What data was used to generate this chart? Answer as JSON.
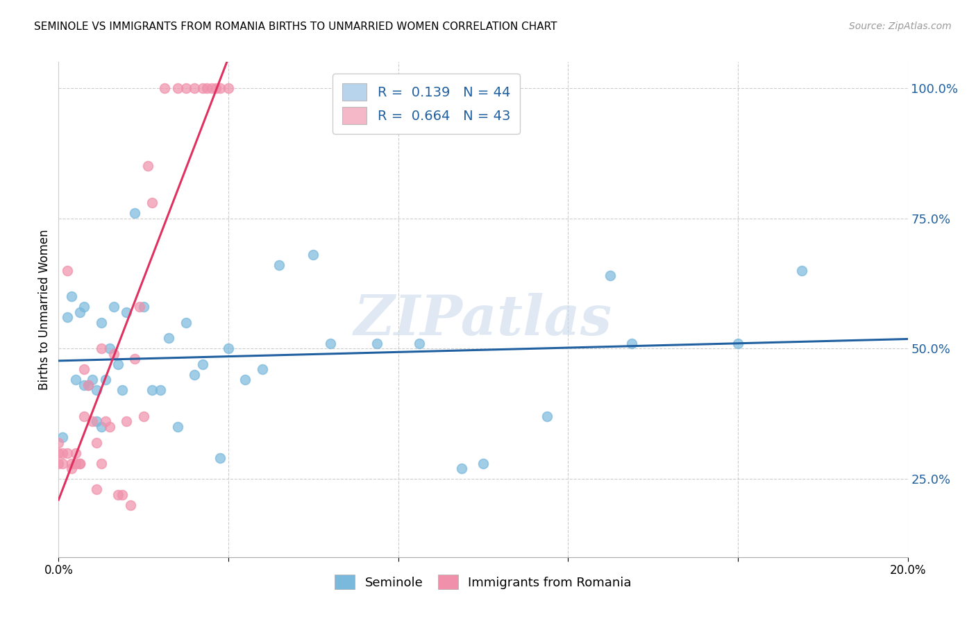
{
  "title": "SEMINOLE VS IMMIGRANTS FROM ROMANIA BIRTHS TO UNMARRIED WOMEN CORRELATION CHART",
  "source": "Source: ZipAtlas.com",
  "ylabel": "Births to Unmarried Women",
  "xmin": 0.0,
  "xmax": 0.2,
  "ymin": 0.1,
  "ymax": 1.05,
  "yticks": [
    0.25,
    0.5,
    0.75,
    1.0
  ],
  "ytick_labels": [
    "25.0%",
    "50.0%",
    "75.0%",
    "100.0%"
  ],
  "xticks": [
    0.0,
    0.04,
    0.08,
    0.12,
    0.16,
    0.2
  ],
  "xtick_labels": [
    "0.0%",
    "",
    "",
    "",
    "",
    "20.0%"
  ],
  "legend_items": [
    {
      "label": "R =  0.139   N = 44",
      "color": "#b8d4ec"
    },
    {
      "label": "R =  0.664   N = 43",
      "color": "#f4b8c8"
    }
  ],
  "seminole_color": "#7ab8dc",
  "romania_color": "#f090aa",
  "trendline_seminole_color": "#2060a0",
  "trendline_romania_color": "#e03060",
  "watermark": "ZIPatlas",
  "seminole_x": [
    0.001,
    0.002,
    0.003,
    0.004,
    0.005,
    0.006,
    0.006,
    0.007,
    0.008,
    0.009,
    0.009,
    0.01,
    0.01,
    0.011,
    0.012,
    0.013,
    0.014,
    0.015,
    0.016,
    0.018,
    0.02,
    0.022,
    0.024,
    0.026,
    0.028,
    0.03,
    0.032,
    0.034,
    0.038,
    0.04,
    0.044,
    0.048,
    0.052,
    0.06,
    0.064,
    0.075,
    0.085,
    0.095,
    0.1,
    0.115,
    0.13,
    0.135,
    0.16,
    0.175
  ],
  "seminole_y": [
    0.33,
    0.56,
    0.6,
    0.44,
    0.57,
    0.43,
    0.58,
    0.43,
    0.44,
    0.36,
    0.42,
    0.35,
    0.55,
    0.44,
    0.5,
    0.58,
    0.47,
    0.42,
    0.57,
    0.76,
    0.58,
    0.42,
    0.42,
    0.52,
    0.35,
    0.55,
    0.45,
    0.47,
    0.29,
    0.5,
    0.44,
    0.46,
    0.66,
    0.68,
    0.51,
    0.51,
    0.51,
    0.27,
    0.28,
    0.37,
    0.64,
    0.51,
    0.51,
    0.65
  ],
  "romania_x": [
    0.0,
    0.0,
    0.0,
    0.001,
    0.001,
    0.002,
    0.002,
    0.003,
    0.003,
    0.004,
    0.004,
    0.005,
    0.005,
    0.006,
    0.006,
    0.007,
    0.008,
    0.009,
    0.009,
    0.01,
    0.01,
    0.011,
    0.012,
    0.013,
    0.014,
    0.015,
    0.016,
    0.017,
    0.018,
    0.019,
    0.02,
    0.021,
    0.022,
    0.025,
    0.028,
    0.03,
    0.032,
    0.034,
    0.035,
    0.036,
    0.037,
    0.038,
    0.04
  ],
  "romania_y": [
    0.3,
    0.32,
    0.28,
    0.28,
    0.3,
    0.65,
    0.3,
    0.27,
    0.28,
    0.28,
    0.3,
    0.28,
    0.28,
    0.46,
    0.37,
    0.43,
    0.36,
    0.32,
    0.23,
    0.5,
    0.28,
    0.36,
    0.35,
    0.49,
    0.22,
    0.22,
    0.36,
    0.2,
    0.48,
    0.58,
    0.37,
    0.85,
    0.78,
    1.0,
    1.0,
    1.0,
    1.0,
    1.0,
    1.0,
    1.0,
    1.0,
    1.0,
    1.0
  ]
}
